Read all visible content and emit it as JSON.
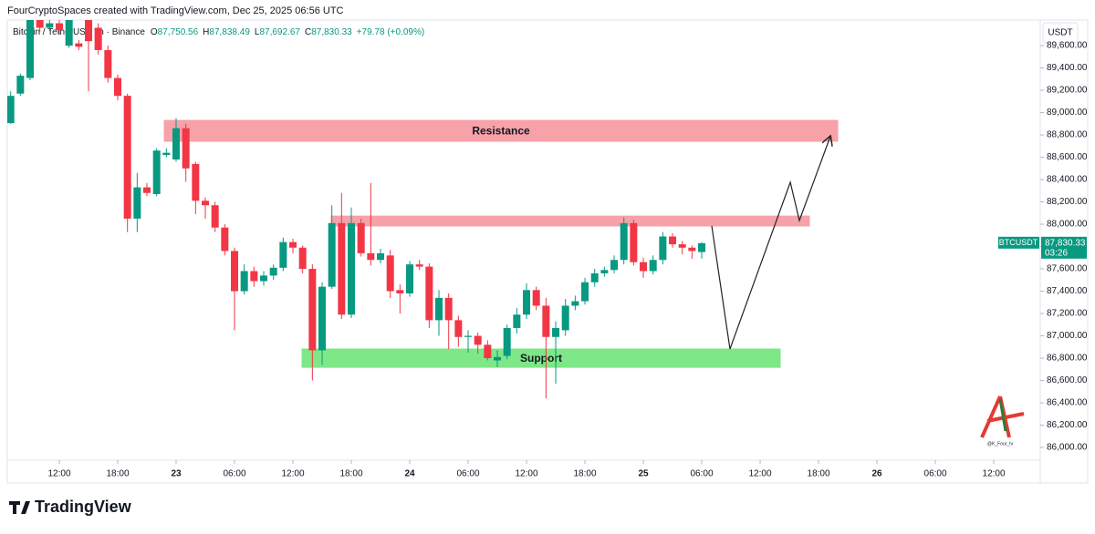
{
  "header": {
    "credit": "FourCryptoSpaces created with TradingView.com, Dec 25, 2025 06:56 UTC",
    "symbol": "Bitcoin / TetherUS · 1h · Binance",
    "ohlc": [
      {
        "key": "O",
        "value": "87,750.56"
      },
      {
        "key": "H",
        "value": "87,838.49"
      },
      {
        "key": "L",
        "value": "87,692.67"
      },
      {
        "key": "C",
        "value": "87,830.33"
      }
    ],
    "change": "+79.78 (+0.09%)"
  },
  "chart_data": {
    "type": "candlestick",
    "currency": "USDT",
    "up_color": "#089981",
    "down_color": "#f23645",
    "x": [
      7,
      8,
      9,
      10,
      11,
      12,
      13,
      14,
      15,
      16,
      17,
      18,
      19,
      20,
      21,
      22,
      23,
      24,
      25,
      26,
      27,
      28,
      29,
      30,
      31,
      32,
      33,
      34,
      35,
      36,
      37,
      38,
      39,
      40,
      41,
      42,
      43,
      44,
      45,
      46,
      47,
      48,
      49,
      50,
      51,
      52,
      53,
      54,
      55,
      56,
      57,
      58,
      59,
      60,
      61,
      62,
      63,
      64,
      65,
      66,
      67,
      68,
      69,
      70,
      71,
      72,
      73,
      74,
      75,
      76,
      77,
      78
    ],
    "open": [
      88906,
      89170,
      89310,
      89840,
      89760,
      89800,
      89600,
      89620,
      89840,
      89760,
      89560,
      89310,
      89150,
      88050,
      88330,
      88270,
      88620,
      88580,
      88860,
      88540,
      88210,
      88170,
      87970,
      87760,
      87400,
      87580,
      87490,
      87540,
      87610,
      87840,
      87790,
      87600,
      86870,
      87440,
      88010,
      87190,
      88010,
      87740,
      87680,
      87720,
      87410,
      87380,
      87640,
      87620,
      87140,
      87340,
      87140,
      86990,
      87000,
      86920,
      86780,
      86820,
      87070,
      87190,
      87410,
      87270,
      86990,
      87050,
      87270,
      87310,
      87480,
      87560,
      87590,
      87680,
      88010,
      87660,
      87580,
      87680,
      87890,
      87820,
      87790,
      87750.56
    ],
    "high": [
      89190,
      89350,
      89880,
      89880,
      89850,
      89860,
      89880,
      89650,
      89880,
      89800,
      89600,
      89340,
      89170,
      88460,
      88370,
      88680,
      88680,
      88950,
      88900,
      88560,
      88240,
      88200,
      88000,
      87790,
      87640,
      87620,
      87580,
      87640,
      87880,
      87870,
      87810,
      87640,
      87480,
      88170,
      88280,
      88150,
      88050,
      88370,
      87780,
      87770,
      87460,
      87670,
      87680,
      87650,
      87410,
      87380,
      87180,
      87050,
      87030,
      86960,
      86870,
      87100,
      87250,
      87470,
      87440,
      87340,
      87130,
      87330,
      87360,
      87520,
      87600,
      87620,
      87720,
      88060,
      88040,
      87700,
      87720,
      87930,
      87920,
      87850,
      87810,
      87838.49
    ],
    "low": [
      88900,
      89150,
      89290,
      89720,
      89730,
      89700,
      89580,
      89560,
      89190,
      89520,
      89270,
      89110,
      87930,
      87930,
      88250,
      88250,
      88600,
      88560,
      88380,
      88090,
      88050,
      87930,
      87720,
      87050,
      87370,
      87440,
      87450,
      87500,
      87580,
      87740,
      87560,
      86600,
      86740,
      87420,
      87150,
      87160,
      87710,
      87630,
      87650,
      87340,
      87200,
      87350,
      87590,
      87070,
      87000,
      86880,
      86900,
      86850,
      86840,
      86780,
      86720,
      86790,
      87020,
      87150,
      87230,
      86440,
      86570,
      87000,
      87230,
      87280,
      87440,
      87530,
      87560,
      87640,
      87630,
      87520,
      87550,
      87640,
      87790,
      87730,
      87690,
      87692.67
    ],
    "close": [
      89150,
      89330,
      89840,
      89760,
      89800,
      89740,
      89845,
      89590,
      89640,
      89560,
      89310,
      89150,
      88050,
      88330,
      88280,
      88660,
      88640,
      88860,
      88500,
      88210,
      88170,
      87970,
      87760,
      87400,
      87580,
      87490,
      87540,
      87610,
      87840,
      87790,
      87600,
      86870,
      87440,
      88010,
      87190,
      88010,
      87740,
      87680,
      87740,
      87400,
      87380,
      87640,
      87620,
      87140,
      87340,
      87140,
      86990,
      87000,
      86920,
      86800,
      86810,
      87070,
      87190,
      87410,
      87270,
      86990,
      87070,
      87270,
      87310,
      87480,
      87560,
      87590,
      87680,
      88010,
      87660,
      87580,
      87680,
      87890,
      87820,
      87790,
      87760,
      87830.33
    ],
    "xlim": [
      6.656,
      111.84
    ],
    "xticks": [
      {
        "value": 12,
        "label": "12:00"
      },
      {
        "value": 18,
        "label": "18:00"
      },
      {
        "value": 24,
        "label": "23"
      },
      {
        "value": 30,
        "label": "06:00"
      },
      {
        "value": 36,
        "label": "12:00"
      },
      {
        "value": 42,
        "label": "18:00"
      },
      {
        "value": 48,
        "label": "24"
      },
      {
        "value": 54,
        "label": "06:00"
      },
      {
        "value": 60,
        "label": "12:00"
      },
      {
        "value": 66,
        "label": "18:00"
      },
      {
        "value": 72,
        "label": "25"
      },
      {
        "value": 78,
        "label": "06:00"
      },
      {
        "value": 84,
        "label": "12:00"
      },
      {
        "value": 90,
        "label": "18:00"
      },
      {
        "value": 96,
        "label": "26"
      },
      {
        "value": 102,
        "label": "06:00"
      },
      {
        "value": 108,
        "label": "12:00"
      }
    ],
    "ylim": [
      85886,
      89829
    ],
    "yticks": [
      {
        "value": 86000,
        "label": "86,000.00"
      },
      {
        "value": 86200,
        "label": "86,200.00"
      },
      {
        "value": 86400,
        "label": "86,400.00"
      },
      {
        "value": 86600,
        "label": "86,600.00"
      },
      {
        "value": 86800,
        "label": "86,800.00"
      },
      {
        "value": 87000,
        "label": "87,000.00"
      },
      {
        "value": 87200,
        "label": "87,200.00"
      },
      {
        "value": 87400,
        "label": "87,400.00"
      },
      {
        "value": 87600,
        "label": "87,600.00"
      },
      {
        "value": 87800,
        "label": "87,800.00"
      },
      {
        "value": 88000,
        "label": "88,000.00"
      },
      {
        "value": 88200,
        "label": "88,200.00"
      },
      {
        "value": 88400,
        "label": "88,400.00"
      },
      {
        "value": 88600,
        "label": "88,600.00"
      },
      {
        "value": 88800,
        "label": "88,800.00"
      },
      {
        "value": 89000,
        "label": "89,000.00"
      },
      {
        "value": 89200,
        "label": "89,200.00"
      },
      {
        "value": 89400,
        "label": "89,400.00"
      },
      {
        "value": 89600,
        "label": "89,600.00"
      }
    ],
    "zones": [
      {
        "label": "Resistance",
        "x": [
          22.78,
          91.97
        ],
        "y": [
          88743,
          88930
        ],
        "color": "#f7a1a8"
      },
      {
        "x": [
          39.94,
          89.06
        ],
        "y": [
          87984,
          88073
        ],
        "color": "#f7a1a8"
      },
      {
        "label": "Support",
        "x": [
          36.94,
          86.06
        ],
        "y": [
          86718,
          86882
        ],
        "color": "#7ee787"
      }
    ],
    "projection": {
      "x": [
        79.03,
        80.9,
        87.1,
        88.03,
        91.2
      ],
      "y": [
        87984,
        86882,
        88376,
        88033,
        88784
      ]
    },
    "price_tag": {
      "symbol": "BTCUSDT",
      "price": "87,830.33",
      "countdown": "03:26"
    },
    "watermark": "@K_Four_tv"
  },
  "footer": {
    "brand": "TradingView"
  }
}
